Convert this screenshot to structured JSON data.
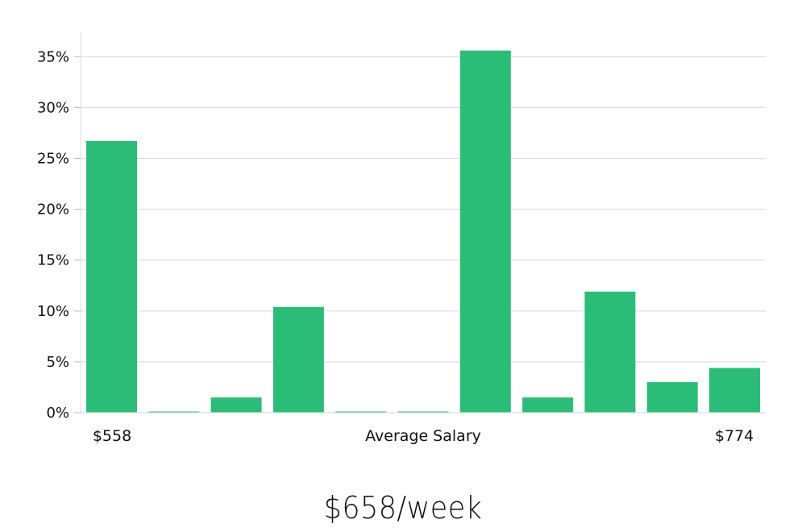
{
  "chart_data": {
    "type": "bar",
    "categories": [
      "",
      "",
      "",
      "",
      "",
      "",
      "",
      "",
      "",
      "",
      ""
    ],
    "values": [
      26.7,
      0.1,
      1.5,
      10.4,
      0.1,
      0.1,
      35.6,
      1.5,
      11.9,
      3.0,
      4.4
    ],
    "ylim": [
      0,
      37
    ],
    "yticks": [
      0,
      5,
      10,
      15,
      20,
      25,
      30,
      35
    ],
    "ytick_suffix": "%",
    "grid": true,
    "bar_color": "#2bbd77",
    "grid_color": "#dddddd",
    "xlabel": "Average Salary",
    "x_min_label": "$558",
    "x_max_label": "$774"
  },
  "summary": {
    "salary": "$658/week"
  }
}
